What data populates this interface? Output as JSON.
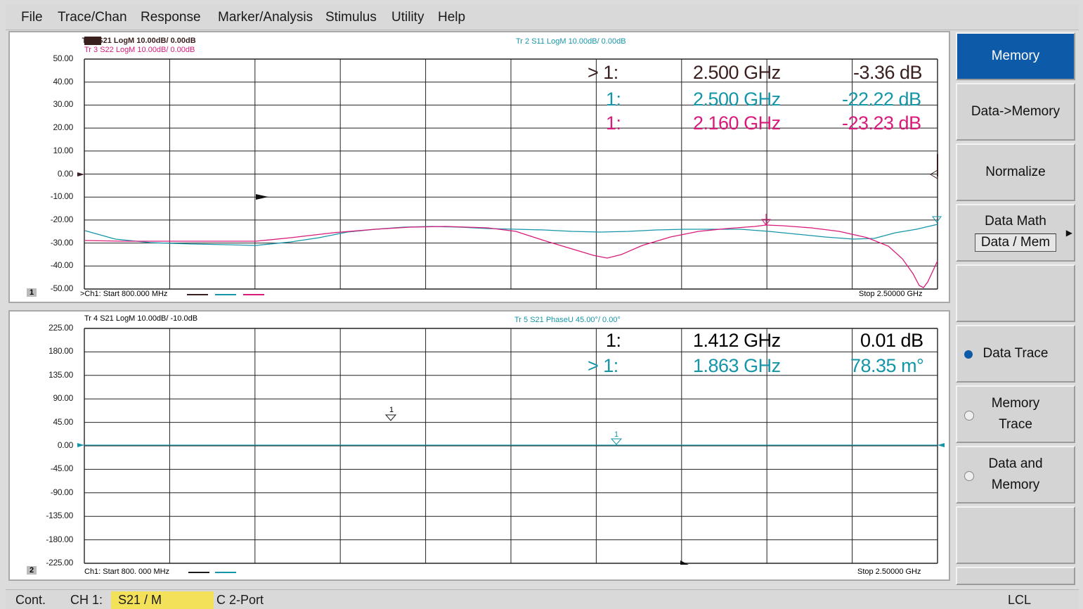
{
  "menu": [
    "File",
    "Trace/Chan",
    "Response",
    "Marker/Analysis",
    "Stimulus",
    "Utility",
    "Help"
  ],
  "window1": {
    "number": "1",
    "trace_labels": [
      {
        "text": "Tr 1  S21 LogM 10.00dB/ 0.00dB",
        "color": "#3a1f1f"
      },
      {
        "text": "Tr 3  S22 LogM 10.00dB/ 0.00dB",
        "color": "#d81b7a"
      },
      {
        "text": "Tr 2  S11 LogM 10.00dB/ 0.00dB",
        "color": "#1596a8"
      }
    ],
    "y_ticks": [
      "50.00",
      "40.00",
      "30.00",
      "20.00",
      "10.00",
      "0.00",
      "-10.00",
      "-20.00",
      "-30.00",
      "-40.00",
      "-50.00"
    ],
    "start": ">Ch1: Start  800.000 MHz",
    "stop": "Stop  2.50000 GHz",
    "markers": [
      {
        "id": "> 1:",
        "freq": "2.500 GHz",
        "value": "-3.36 dB",
        "color": "#3a1f1f"
      },
      {
        "id": "1:",
        "freq": "2.500 GHz",
        "value": "-22.22 dB",
        "color": "#1596a8"
      },
      {
        "id": "1:",
        "freq": "2.160 GHz",
        "value": "-23.23 dB",
        "color": "#d81b7a"
      }
    ]
  },
  "window2": {
    "number": "2",
    "trace_labels": [
      {
        "text": "Tr 4  S21 LogM 10.00dB/ -10.0dB",
        "color": "#1a1a1a"
      },
      {
        "text": "Tr 5  S21 PhaseU 45.00°/ 0.00°",
        "color": "#1596a8"
      }
    ],
    "y_ticks": [
      "225.00",
      "180.00",
      "135.00",
      "90.00",
      "45.00",
      "0.00",
      "-45.00",
      "-90.00",
      "-135.00",
      "-180.00",
      "-225.00"
    ],
    "start": "Ch1: Start  800. 000 MHz",
    "stop": "Stop  2.50000 GHz",
    "markers": [
      {
        "id": "1:",
        "freq": "1.412 GHz",
        "value": "0.01 dB",
        "color": "#1a1a1a"
      },
      {
        "id": "> 1:",
        "freq": "1.863 GHz",
        "value": "78.35 m°",
        "color": "#1596a8"
      }
    ],
    "marker_flags": [
      "1",
      "1"
    ]
  },
  "softkeys": {
    "memory": "Memory",
    "data_to_memory": "Data->Memory",
    "normalize": "Normalize",
    "data_math": "Data Math",
    "data_math_value": "Data / Mem",
    "data_trace": "Data Trace",
    "memory_trace_1": "Memory",
    "memory_trace_2": "Trace",
    "data_and_memory_1": "Data and",
    "data_and_memory_2": "Memory"
  },
  "status": {
    "mode": "Cont.",
    "channel": "CH 1:",
    "measurement": "S21 / M",
    "cal": "C 2-Port",
    "remote": "LCL"
  },
  "colors": {
    "s21": "#3a1f1f",
    "s11": "#1596a8",
    "s22": "#d81b7a",
    "active_softkey": "#0d5aa8",
    "measurement_highlight": "#f4e15a"
  }
}
